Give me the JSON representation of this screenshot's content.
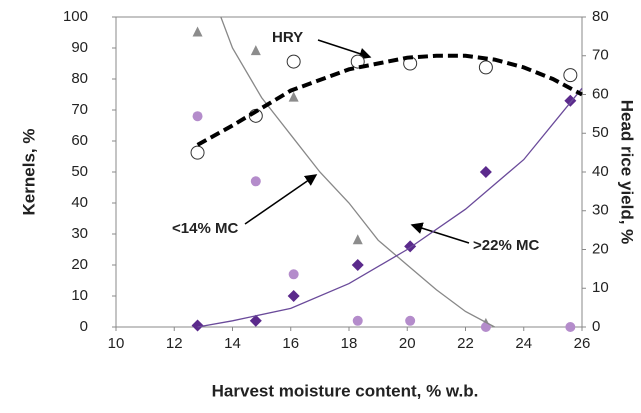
{
  "chart_data": {
    "type": "scatter-line",
    "xlabel": "Harvest moisture content, % w.b.",
    "ylabel": "Kernels, %",
    "y2label": "Head rice yield, %",
    "xlim": [
      10,
      26
    ],
    "xticks": [
      10,
      12,
      14,
      16,
      18,
      20,
      22,
      24,
      26
    ],
    "ylim": [
      0,
      100
    ],
    "yticks": [
      0,
      10,
      20,
      30,
      40,
      50,
      60,
      70,
      80,
      90,
      100
    ],
    "y2lim": [
      0,
      80
    ],
    "y2ticks": [
      0,
      10,
      20,
      30,
      40,
      50,
      60,
      70,
      80
    ],
    "annotations": [
      "HRY",
      "<14% MC",
      ">22% MC"
    ],
    "series": [
      {
        "marker": "triangle",
        "color": "#8c8c8c",
        "axis": "y",
        "x": [
          12.8,
          14.8,
          16.1,
          18.3,
          22.7
        ],
        "values": [
          95,
          89,
          74,
          28,
          1
        ]
      },
      {
        "marker": "circle",
        "color": "#b48ccb",
        "axis": "y",
        "x": [
          12.8,
          14.8,
          16.1,
          18.3,
          20.1,
          22.7,
          25.6
        ],
        "values": [
          68,
          47,
          17,
          2,
          2,
          0,
          0
        ]
      },
      {
        "marker": "diamond",
        "color": "#5b2a8c",
        "axis": "y",
        "x": [
          12.8,
          14.8,
          16.1,
          18.3,
          20.1,
          22.7,
          25.6
        ],
        "values": [
          0.5,
          2,
          10,
          20,
          26,
          50,
          73
        ]
      },
      {
        "marker": "open-circle",
        "color": "#333333",
        "axis": "y2",
        "x": [
          12.8,
          14.8,
          16.1,
          18.3,
          20.1,
          22.7,
          25.6
        ],
        "values": [
          45,
          54.5,
          68.5,
          68.5,
          68,
          67,
          65
        ]
      },
      {
        "marker": "line",
        "color": "#888888",
        "axis": "y",
        "x": [
          13.6,
          14,
          15,
          16,
          17,
          18,
          19,
          20,
          21,
          22,
          23
        ],
        "values": [
          100,
          90,
          74,
          62,
          50,
          40,
          28,
          20,
          12,
          5,
          0
        ]
      },
      {
        "marker": "line",
        "color": "#6a4a9a",
        "axis": "y",
        "x": [
          12.8,
          14,
          16,
          18,
          20,
          22,
          24,
          26
        ],
        "values": [
          0,
          2,
          6,
          14,
          25,
          38,
          54,
          77
        ]
      },
      {
        "marker": "dashed",
        "color": "#000000",
        "axis": "y2",
        "x": [
          12.8,
          14,
          16,
          18,
          20,
          21,
          22,
          23,
          24,
          25,
          26
        ],
        "values": [
          47,
          52,
          61,
          66.5,
          69.5,
          70,
          70,
          69,
          67,
          64,
          60
        ]
      }
    ]
  }
}
